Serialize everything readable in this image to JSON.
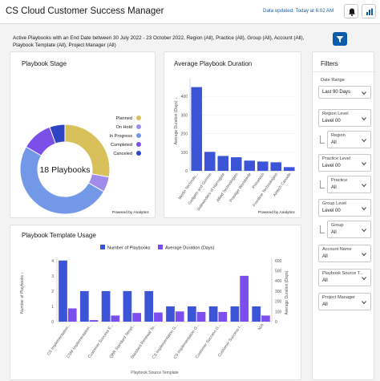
{
  "header": {
    "title": "CS Cloud Customer Success Manager",
    "updated": "Data updated: Today at 6:02 AM"
  },
  "filters_summary": "Active Playbooks with an End Date between 30 July 2022 - 23 October 2022, Region (All), Practice (All), Group (All), Account (All), Playbook Template (All), Project Manager (All)",
  "colors": {
    "planned": "#d8c15a",
    "on_hold": "#a08bea",
    "in_progress": "#7398e8",
    "completed": "#7b4fe8",
    "canceled": "#2d43c4",
    "bar_blue": "#3b55d6",
    "bar_purple": "#7c4ef0",
    "brand": "#0b5cab"
  },
  "playbook_stage": {
    "title": "Playbook Stage",
    "center_label": "18 Playbooks",
    "powered": "Powered by Analytics"
  },
  "avg_duration": {
    "title": "Average Playbook Duration",
    "powered": "Powered by Analytics"
  },
  "template_usage": {
    "title": "Playbook Template Usage"
  },
  "filters_panel": {
    "title": "Filters",
    "date_range_label": "Date Range",
    "date_range_value": "Last 90 Days",
    "region_level": {
      "label": "Region Level",
      "value": "Level 00"
    },
    "region": {
      "label": "Region",
      "value": "All"
    },
    "practice_level": {
      "label": "Practice Level",
      "value": "Level 00"
    },
    "practice": {
      "label": "Practice",
      "value": "All"
    },
    "group_level": {
      "label": "Group Level",
      "value": "Level 00"
    },
    "group": {
      "label": "Group",
      "value": "All"
    },
    "account_name": {
      "label": "Account Name",
      "value": "All"
    },
    "playbook_source": {
      "label": "Playbook Source T...",
      "value": "All"
    },
    "project_manager": {
      "label": "Project Manager",
      "value": "All"
    }
  },
  "chart_data": [
    {
      "type": "pie",
      "title": "Playbook Stage",
      "categories": [
        "Planned",
        "On Hold",
        "In Progress",
        "Completed",
        "Canceled"
      ],
      "values": [
        5,
        1,
        9,
        2,
        1
      ],
      "center_label": "18 Playbooks",
      "legend": "right"
    },
    {
      "type": "bar",
      "title": "Average Playbook Duration",
      "ylabel": "Average Duration (Days) ↓",
      "categories": [
        "Merlin Technolo...",
        "Gadgets and Gizmos",
        "Sidewinders of Harrogate",
        "Allied Technologies",
        "Prestige Worldwide",
        "Primetech",
        "Frontline Technologies",
        "Airtech Canada"
      ],
      "values": [
        450,
        102,
        80,
        73,
        55,
        50,
        46,
        20
      ],
      "yticks": [
        0,
        100,
        200,
        300,
        400
      ],
      "ylim": [
        0,
        500
      ]
    },
    {
      "type": "bar",
      "title": "Playbook Template Usage",
      "xlabel": "Playbook Source Template",
      "ylabel": "Number of Playbooks ↓",
      "y2label": "Average Duration (Days)",
      "categories": [
        "CS Implementation...",
        "CSM Implementation...",
        "Customer Success E...",
        "QBR Standard Templ...",
        "Standard Renewal Te...",
        "CS Implementation G...",
        "CS Implementation G...",
        "Customer Success G...",
        "Customer Success I...",
        "N/A"
      ],
      "series": [
        {
          "name": "Number of Playbooks",
          "axis": "left",
          "values": [
            4,
            2,
            2,
            2,
            2,
            1,
            1,
            1,
            1,
            1
          ]
        },
        {
          "name": "Average Duration (Days)",
          "axis": "right",
          "values": [
            130,
            15,
            60,
            85,
            90,
            100,
            95,
            95,
            450,
            60
          ]
        }
      ],
      "yticks": [
        0,
        1,
        2,
        3,
        4
      ],
      "y2ticks": [
        0,
        100,
        200,
        300,
        400,
        500,
        600
      ],
      "ylim": [
        0,
        4.2
      ],
      "y2lim": [
        0,
        630
      ],
      "legend": "top"
    }
  ]
}
